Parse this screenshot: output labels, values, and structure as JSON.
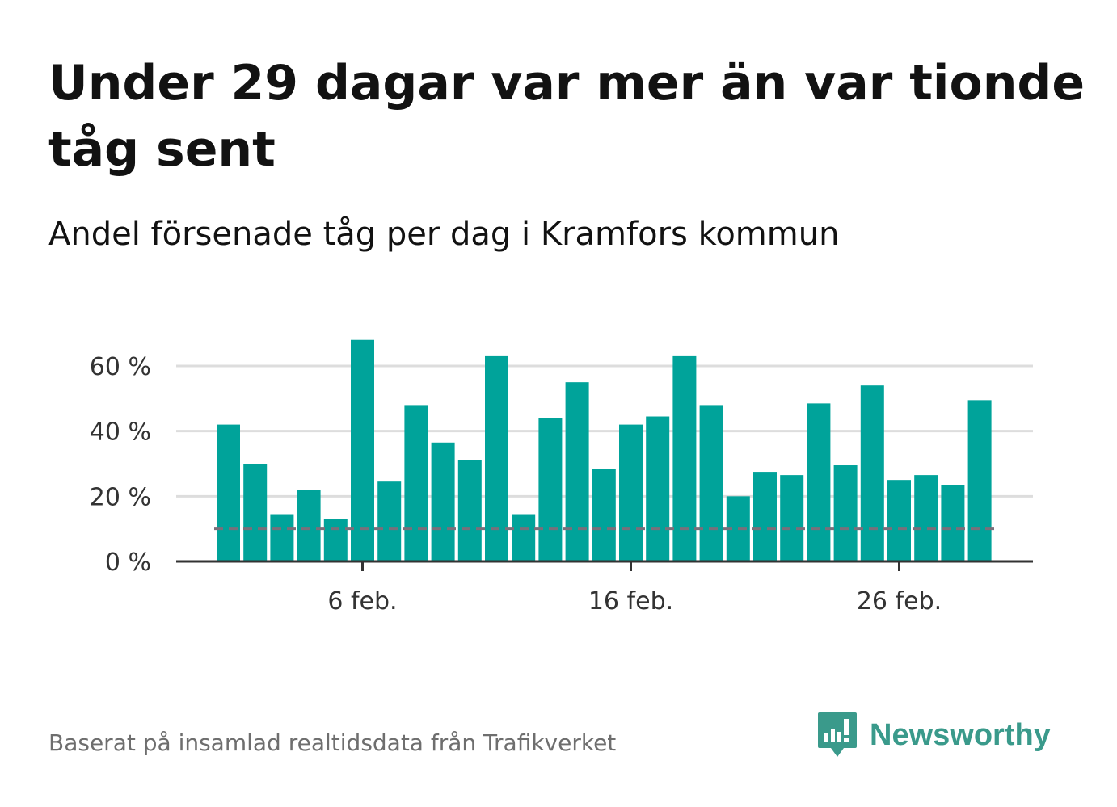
{
  "title": "Under 29 dagar var mer än var tionde tåg sent",
  "subtitle": "Andel försenade tåg per dag i Kramfors kommun",
  "source": "Baserat på insamlad realtidsdata från Trafikverket",
  "brand": {
    "name": "Newsworthy",
    "color": "#3a9a8b"
  },
  "colors": {
    "bar": "#00a39a",
    "reference": "#7a6f7a",
    "grid": "#dddddd",
    "axis": "#333333"
  },
  "chart_data": {
    "type": "bar",
    "title": "Under 29 dagar var mer än var tionde tåg sent",
    "subtitle": "Andel försenade tåg per dag i Kramfors kommun",
    "xlabel": "",
    "ylabel": "",
    "categories": [
      "1 feb.",
      "2 feb.",
      "3 feb.",
      "4 feb.",
      "5 feb.",
      "6 feb.",
      "7 feb.",
      "8 feb.",
      "9 feb.",
      "10 feb.",
      "11 feb.",
      "12 feb.",
      "13 feb.",
      "14 feb.",
      "15 feb.",
      "16 feb.",
      "17 feb.",
      "18 feb.",
      "19 feb.",
      "20 feb.",
      "21 feb.",
      "22 feb.",
      "23 feb.",
      "24 feb.",
      "25 feb.",
      "26 feb.",
      "27 feb.",
      "28 feb.",
      "29 feb."
    ],
    "values": [
      42,
      30,
      14.5,
      22,
      13,
      68,
      24.5,
      48,
      36.5,
      31,
      63,
      14.5,
      44,
      55,
      28.5,
      42,
      44.5,
      63,
      48,
      20,
      27.5,
      26.5,
      48.5,
      29.5,
      54,
      25,
      26.5,
      23.5,
      49.5
    ],
    "reference_line": 10,
    "ylim": [
      0,
      70
    ],
    "yticks": [
      0,
      20,
      40,
      60
    ],
    "ytick_labels": [
      "0 %",
      "20 %",
      "40 %",
      "60 %"
    ],
    "xticks": [
      {
        "index": 5,
        "label": "6 feb."
      },
      {
        "index": 15,
        "label": "16 feb."
      },
      {
        "index": 25,
        "label": "26 feb."
      }
    ],
    "grid": true
  }
}
